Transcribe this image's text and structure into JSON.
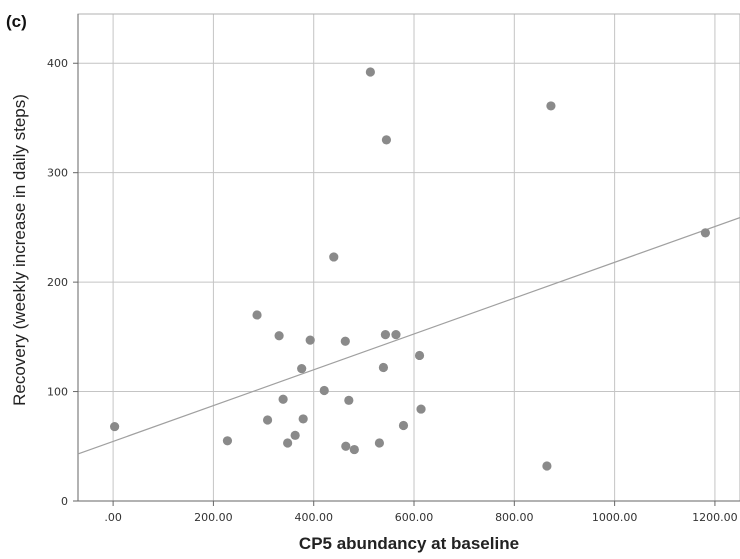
{
  "chart_data": {
    "type": "scatter",
    "panel_label": "(c)",
    "xlabel": "CP5 abundancy at baseline",
    "ylabel": "Recovery (weekly increase in daily steps)",
    "xlim": [
      -70,
      1250
    ],
    "ylim": [
      0,
      445
    ],
    "xticks": [
      0,
      200,
      400,
      600,
      800,
      1000,
      1200
    ],
    "xtick_labels": [
      ".00",
      "200.00",
      "400.00",
      "600.00",
      "800.00",
      "1000.00",
      "1200.00"
    ],
    "yticks": [
      0,
      100,
      200,
      300,
      400
    ],
    "ytick_labels": [
      "0",
      "100",
      "200",
      "300",
      "400"
    ],
    "grid": true,
    "point_color": "#8a8a8a",
    "line_color": "#a0a0a0",
    "points": [
      {
        "x": 3,
        "y": 68
      },
      {
        "x": 228,
        "y": 55
      },
      {
        "x": 287,
        "y": 170
      },
      {
        "x": 308,
        "y": 74
      },
      {
        "x": 331,
        "y": 151
      },
      {
        "x": 339,
        "y": 93
      },
      {
        "x": 348,
        "y": 53
      },
      {
        "x": 363,
        "y": 60
      },
      {
        "x": 376,
        "y": 121
      },
      {
        "x": 379,
        "y": 75
      },
      {
        "x": 393,
        "y": 147
      },
      {
        "x": 421,
        "y": 101
      },
      {
        "x": 440,
        "y": 223
      },
      {
        "x": 463,
        "y": 146
      },
      {
        "x": 464,
        "y": 50
      },
      {
        "x": 470,
        "y": 92
      },
      {
        "x": 481,
        "y": 47
      },
      {
        "x": 513,
        "y": 392
      },
      {
        "x": 531,
        "y": 53
      },
      {
        "x": 539,
        "y": 122
      },
      {
        "x": 543,
        "y": 152
      },
      {
        "x": 545,
        "y": 330
      },
      {
        "x": 564,
        "y": 152
      },
      {
        "x": 579,
        "y": 69
      },
      {
        "x": 611,
        "y": 133
      },
      {
        "x": 614,
        "y": 84
      },
      {
        "x": 865,
        "y": 32
      },
      {
        "x": 873,
        "y": 361
      },
      {
        "x": 1181,
        "y": 245
      }
    ],
    "fit_line": {
      "x": [
        -70,
        1250
      ],
      "y": [
        43,
        259
      ]
    }
  }
}
